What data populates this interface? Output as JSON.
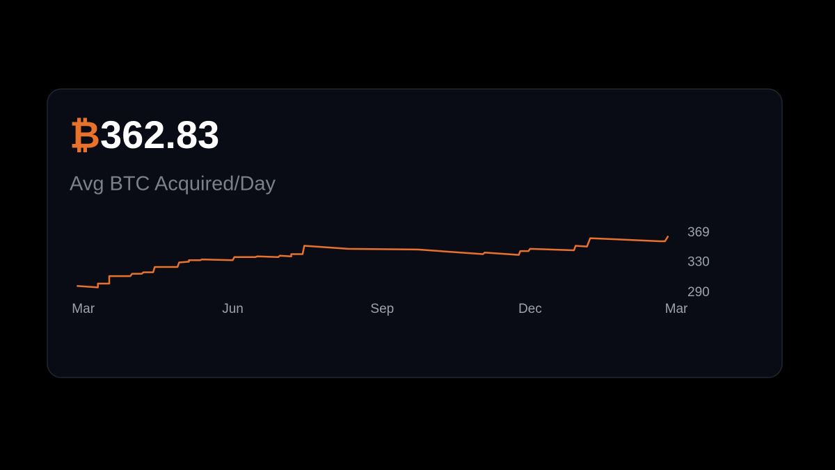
{
  "header": {
    "symbol": "₿",
    "value": "362.83",
    "label": "Avg BTC Acquired/Day"
  },
  "chart_data": {
    "type": "line",
    "x": [
      -4,
      9,
      9,
      16,
      16,
      29,
      30,
      36,
      37,
      43,
      44,
      58,
      59,
      65,
      65,
      72,
      73,
      92,
      93,
      106,
      107,
      120,
      121,
      128,
      128,
      135,
      136,
      163,
      206,
      246,
      247,
      268,
      269,
      274,
      275,
      302,
      303,
      310,
      312,
      355,
      358,
      360
    ],
    "series": [
      {
        "color": "#e8722c",
        "values": [
          299,
          297,
          302,
          302,
          312,
          312,
          315,
          315,
          317,
          317,
          324,
          324,
          330,
          331,
          333,
          333,
          334,
          333,
          337,
          337,
          338,
          337,
          339,
          338,
          341,
          341,
          352,
          348,
          347,
          341,
          343,
          340,
          345,
          345,
          348,
          346,
          352,
          351,
          362,
          358,
          358,
          365
        ]
      }
    ],
    "xlim": [
      -5,
      365
    ],
    "xticks": [
      {
        "value": 0,
        "label": "Mar"
      },
      {
        "value": 92,
        "label": "Jun"
      },
      {
        "value": 184,
        "label": "Sep"
      },
      {
        "value": 275,
        "label": "Dec"
      },
      {
        "value": 365,
        "label": "Mar"
      }
    ],
    "ylim": [
      290,
      369
    ],
    "yticks": [
      290,
      330,
      369
    ],
    "grid": false
  }
}
